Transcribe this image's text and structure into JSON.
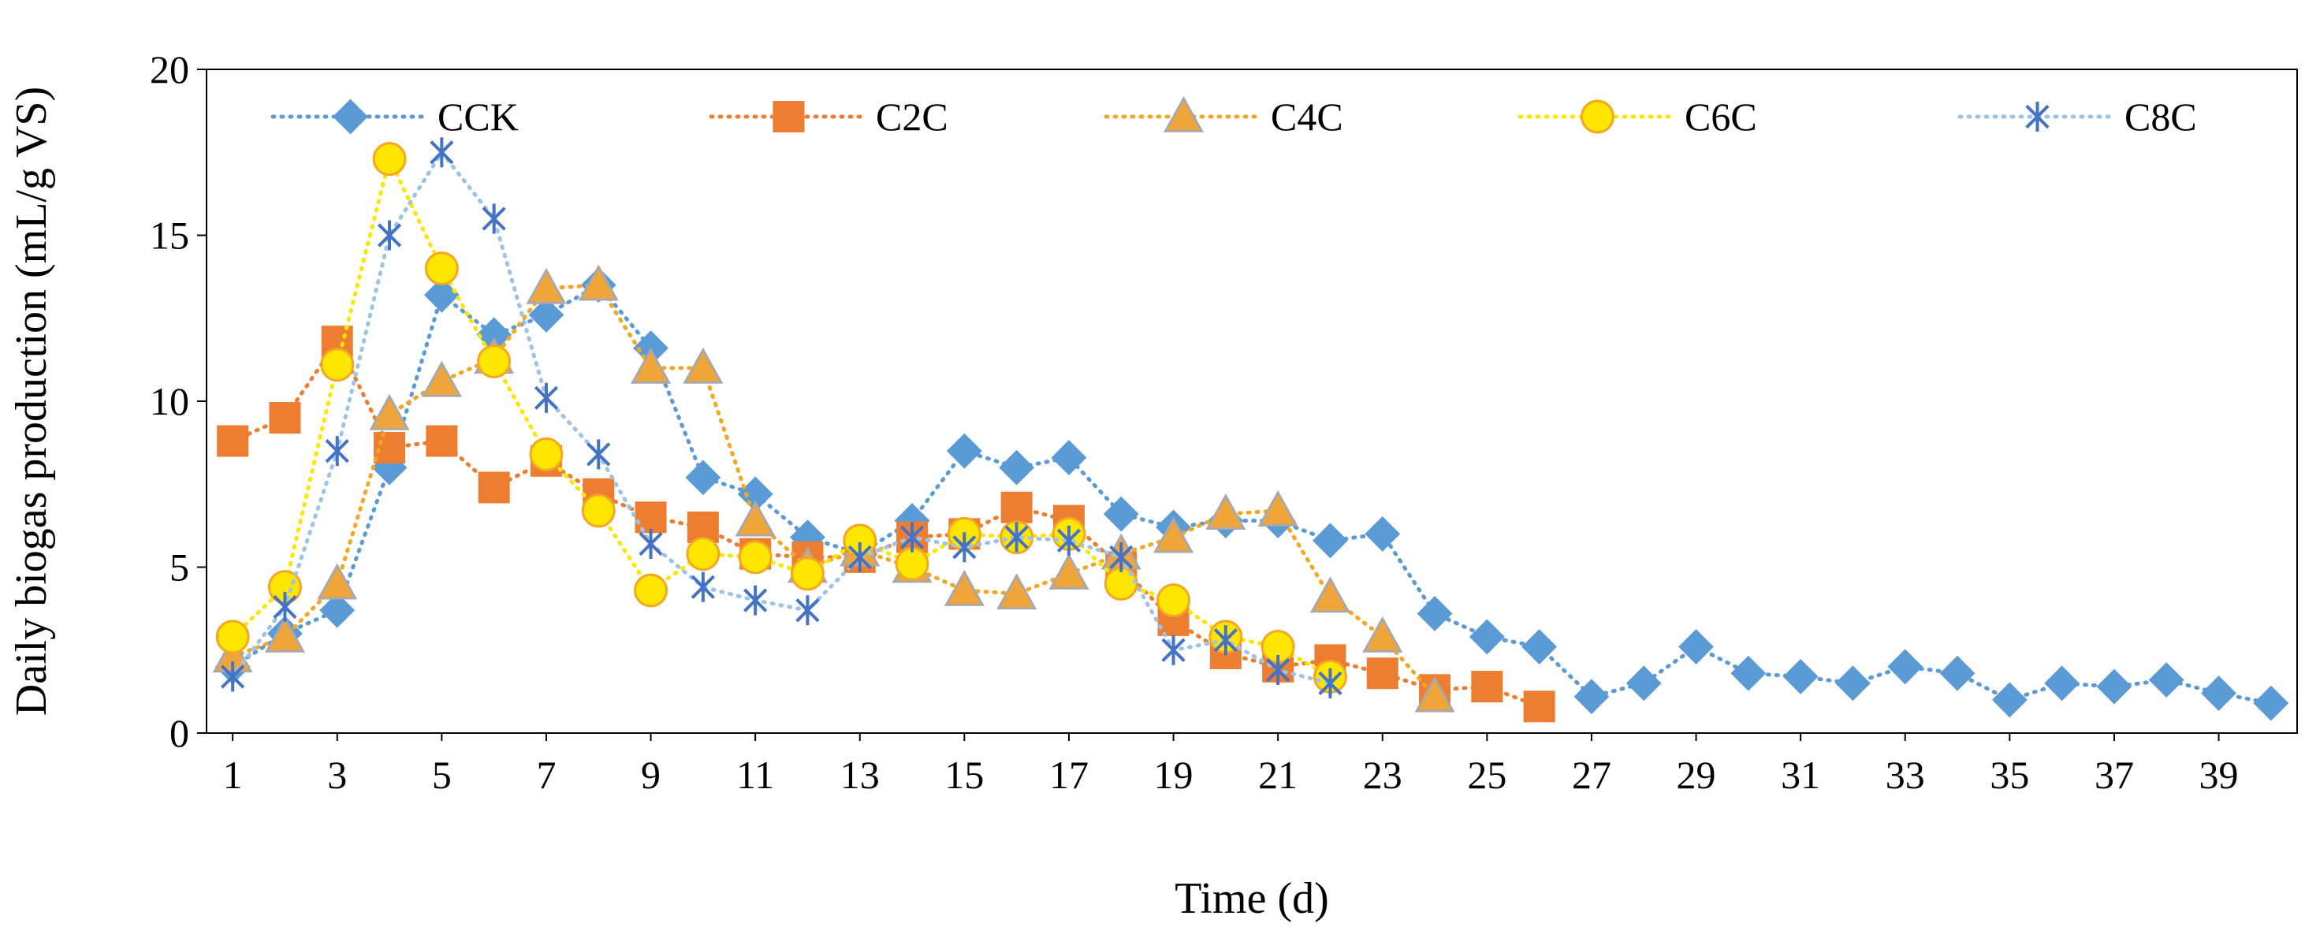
{
  "chart_data": {
    "type": "line",
    "title": "",
    "xlabel": "Time (d)",
    "ylabel": "Daily biogas production  (mL/g VS)",
    "xlim": [
      0.5,
      40.5
    ],
    "ylim": [
      0,
      20
    ],
    "yticks": [
      0,
      5,
      10,
      15,
      20
    ],
    "xticks": [
      1,
      3,
      5,
      7,
      9,
      11,
      13,
      15,
      17,
      19,
      21,
      23,
      25,
      27,
      29,
      31,
      33,
      35,
      37,
      39
    ],
    "legend_position": "top",
    "series": [
      {
        "name": "CCK",
        "marker": "diamond",
        "color": "#5B9BD5",
        "marker_fill": "#5B9BD5",
        "marker_stroke": "#5B9BD5",
        "x": [
          1,
          2,
          3,
          4,
          5,
          6,
          7,
          8,
          9,
          10,
          11,
          12,
          13,
          14,
          15,
          16,
          17,
          18,
          19,
          20,
          21,
          22,
          23,
          24,
          25,
          26,
          27,
          28,
          29,
          30,
          31,
          32,
          33,
          34,
          35,
          36,
          37,
          38,
          39,
          40
        ],
        "y": [
          2.0,
          3.0,
          3.7,
          8.0,
          13.2,
          12.0,
          12.6,
          13.5,
          11.6,
          7.7,
          7.2,
          5.9,
          5.4,
          6.4,
          8.5,
          8.0,
          8.3,
          6.6,
          6.2,
          6.4,
          6.4,
          5.8,
          6.0,
          3.6,
          2.9,
          2.6,
          1.1,
          1.5,
          2.6,
          1.8,
          1.7,
          1.5,
          2.0,
          1.8,
          1.0,
          1.5,
          1.4,
          1.6,
          1.2,
          0.9
        ]
      },
      {
        "name": "C2C",
        "marker": "square",
        "color": "#ED7D31",
        "marker_fill": "#ED7D31",
        "marker_stroke": "#ED7D31",
        "x": [
          1,
          2,
          3,
          4,
          5,
          6,
          7,
          8,
          9,
          10,
          11,
          12,
          13,
          14,
          15,
          16,
          17,
          18,
          19,
          20,
          21,
          22,
          23,
          24,
          25,
          26
        ],
        "y": [
          8.8,
          9.5,
          11.8,
          8.6,
          8.8,
          7.4,
          8.2,
          7.2,
          6.5,
          6.2,
          5.4,
          5.3,
          5.3,
          5.9,
          6.0,
          6.8,
          6.4,
          5.0,
          3.4,
          2.4,
          2.0,
          2.2,
          1.8,
          1.3,
          1.4,
          0.8
        ]
      },
      {
        "name": "C4C",
        "marker": "triangle",
        "color": "#F5A623",
        "marker_fill": "#F0A53A",
        "marker_stroke": "#A9A9A9",
        "x": [
          1,
          2,
          3,
          4,
          5,
          6,
          7,
          8,
          9,
          10,
          11,
          12,
          13,
          14,
          15,
          16,
          17,
          18,
          19,
          20,
          21,
          22,
          23,
          24
        ],
        "y": [
          2.3,
          2.9,
          4.5,
          9.6,
          10.6,
          11.3,
          13.4,
          13.5,
          11.0,
          11.0,
          6.4,
          5.0,
          5.5,
          5.0,
          4.3,
          4.2,
          4.8,
          5.4,
          5.9,
          6.6,
          6.7,
          4.1,
          2.9,
          1.1
        ]
      },
      {
        "name": "C6C",
        "marker": "circle",
        "color": "#FFE600",
        "marker_fill": "#FFE600",
        "marker_stroke": "#F5A623",
        "x": [
          1,
          2,
          3,
          4,
          5,
          6,
          7,
          8,
          9,
          10,
          11,
          12,
          13,
          14,
          15,
          16,
          17,
          18,
          19,
          20,
          21,
          22
        ],
        "y": [
          2.9,
          4.4,
          11.1,
          17.3,
          14.0,
          11.2,
          8.4,
          6.7,
          4.3,
          5.4,
          5.3,
          4.8,
          5.8,
          5.1,
          6.0,
          5.9,
          6.0,
          4.5,
          4.0,
          2.9,
          2.6,
          1.7
        ]
      },
      {
        "name": "C8C",
        "marker": "asterisk",
        "color": "#9DC3E6",
        "marker_fill": "none",
        "marker_stroke": "#4472C4",
        "x": [
          1,
          2,
          3,
          4,
          5,
          6,
          7,
          8,
          9,
          10,
          11,
          12,
          13,
          14,
          15,
          16,
          17,
          18,
          19,
          20,
          21,
          22
        ],
        "y": [
          1.7,
          3.8,
          8.5,
          15.0,
          17.5,
          15.5,
          10.1,
          8.4,
          5.7,
          4.4,
          4.0,
          3.7,
          5.3,
          5.9,
          5.6,
          5.9,
          5.8,
          5.3,
          2.5,
          2.8,
          1.9,
          1.5
        ]
      }
    ]
  }
}
